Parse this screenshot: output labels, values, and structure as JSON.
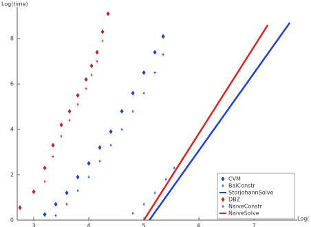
{
  "chart_data": {
    "type": "scatter",
    "y_label": "Log(time)",
    "x_label": "Log(",
    "xlim": [
      2.7,
      7.76
    ],
    "ylim": [
      0,
      9.4
    ],
    "xticks": [
      3,
      4,
      5,
      6,
      7
    ],
    "yticks": [
      0,
      2,
      4,
      6,
      8
    ],
    "legend": "lower right",
    "series": [
      {
        "name": "CVM",
        "color": "#1f3fd0",
        "style": "diamond",
        "x": [
          3.2,
          3.4,
          3.6,
          3.8,
          4.0,
          4.2,
          4.4,
          4.6,
          4.8,
          5.0,
          5.2,
          5.35
        ],
        "values": [
          0.25,
          0.7,
          1.2,
          1.9,
          2.5,
          3.2,
          3.9,
          4.8,
          5.6,
          6.5,
          7.4,
          8.1
        ]
      },
      {
        "name": "BalConstr",
        "color": "#1f3fd0",
        "style": "plus",
        "x": [
          3.4,
          3.6,
          3.8,
          4.0,
          4.2,
          4.4,
          4.6,
          4.8,
          5.0,
          5.2,
          5.35,
          4.8,
          5.0,
          5.2,
          5.4,
          5.55,
          5.7
        ],
        "values": [
          0.2,
          0.7,
          1.3,
          1.9,
          2.6,
          3.3,
          4.0,
          4.8,
          5.6,
          6.5,
          7.3,
          0.3,
          0.7,
          1.2,
          1.8,
          2.3,
          2.7
        ]
      },
      {
        "name": "StorjohannSolve",
        "color": "#1f3fd0",
        "style": "line",
        "x": [
          5.1,
          7.65
        ],
        "values": [
          0.0,
          8.7
        ]
      },
      {
        "name": "DBZ",
        "color": "#c8202a",
        "style": "diamond",
        "x": [
          2.75,
          3.0,
          3.2,
          3.35,
          3.5,
          3.65,
          3.8,
          3.95,
          4.05,
          4.15,
          4.25,
          4.35
        ],
        "values": [
          0.55,
          1.25,
          2.3,
          3.3,
          4.2,
          4.8,
          5.5,
          6.2,
          6.8,
          7.4,
          8.3,
          9.1
        ]
      },
      {
        "name": "NaiveConstr",
        "color": "#e0201f",
        "style": "plus",
        "x": [
          3.2,
          3.35,
          3.5,
          3.65,
          3.8,
          3.95,
          4.05,
          4.15,
          4.25
        ],
        "values": [
          1.7,
          2.8,
          3.7,
          4.4,
          5.1,
          5.8,
          6.4,
          7.0,
          7.9
        ]
      },
      {
        "name": "NaiveSolve",
        "color": "#e0201f",
        "style": "line",
        "x": [
          5.0,
          7.25
        ],
        "values": [
          0.0,
          8.6
        ]
      }
    ]
  }
}
